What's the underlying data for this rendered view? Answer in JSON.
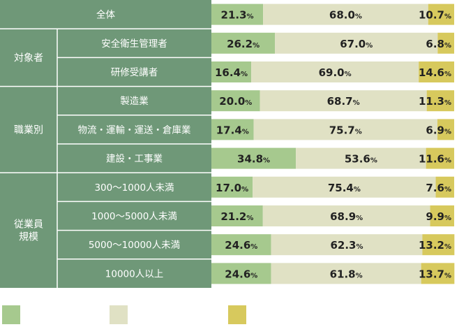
{
  "chart_data": {
    "type": "bar",
    "stacked": true,
    "orientation": "horizontal",
    "unit": "%",
    "xlim": [
      0,
      100
    ],
    "colors": [
      "#a6c98e",
      "#e0e1c4",
      "#d7c95d"
    ],
    "panel_color": "#6f9878",
    "groups": [
      {
        "name": "",
        "rows": [
          0
        ]
      },
      {
        "name": "対象者",
        "rows": [
          1,
          2
        ]
      },
      {
        "name": "職業別",
        "rows": [
          3,
          4,
          5
        ]
      },
      {
        "name": "従業員\n規模",
        "rows": [
          6,
          7,
          8,
          9
        ]
      }
    ],
    "categories": [
      "全体",
      "安全衛生管理者",
      "研修受講者",
      "製造業",
      "物流・運輸・運送・倉庫業",
      "建設・工事業",
      "300〜1000人未満",
      "1000〜5000人未満",
      "5000〜10000人未満",
      "10000人以上"
    ],
    "series": [
      {
        "values": [
          21.3,
          26.2,
          16.4,
          20.0,
          17.4,
          34.8,
          17.0,
          21.2,
          24.6,
          24.6
        ]
      },
      {
        "values": [
          68.0,
          67.0,
          69.0,
          68.7,
          75.7,
          53.6,
          75.4,
          68.9,
          62.3,
          61.8
        ]
      },
      {
        "values": [
          10.7,
          6.8,
          14.6,
          11.3,
          6.9,
          11.6,
          7.6,
          9.9,
          13.2,
          13.7
        ]
      }
    ],
    "data_labels": [
      [
        "21.3",
        "68.0",
        "10.7"
      ],
      [
        "26.2",
        "67.0",
        "6.8"
      ],
      [
        "16.4",
        "69.0",
        "14.6"
      ],
      [
        "20.0",
        "68.7",
        "11.3"
      ],
      [
        "17.4",
        "75.7",
        "6.9"
      ],
      [
        "34.8",
        "53.6",
        "11.6"
      ],
      [
        "17.0",
        "75.4",
        "7.6"
      ],
      [
        "21.2",
        "68.9",
        "9.9"
      ],
      [
        "24.6",
        "62.3",
        "13.2"
      ],
      [
        "24.6",
        "61.8",
        "13.7"
      ]
    ],
    "percent_sign": "%",
    "legend": {
      "position": "bottom-left",
      "labels": [
        "",
        "",
        ""
      ]
    }
  }
}
